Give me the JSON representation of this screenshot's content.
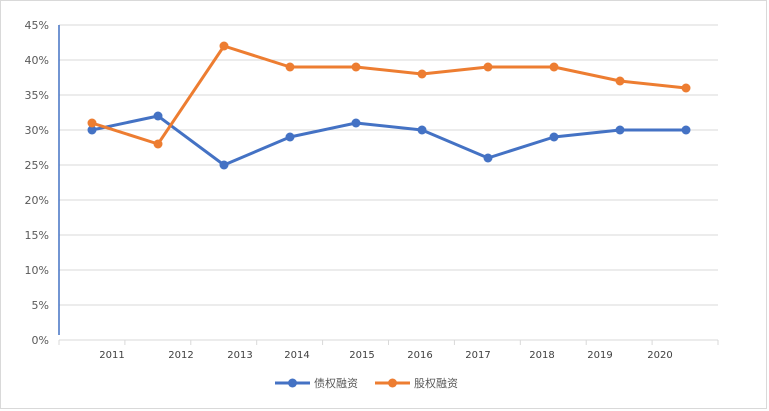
{
  "chart_data": {
    "type": "line",
    "categories": [
      "2011",
      "2012",
      "2013",
      "2014",
      "2015",
      "2016",
      "2017",
      "2018",
      "2019",
      "2020"
    ],
    "y_ticks": [
      "0%",
      "5%",
      "10%",
      "15%",
      "20%",
      "25%",
      "30%",
      "35%",
      "40%",
      "45%"
    ],
    "ylim": [
      0,
      45
    ],
    "grid": true,
    "legend_position": "bottom",
    "series": [
      {
        "name": "债权融资",
        "color": "#4472c4",
        "values": [
          30,
          32,
          25,
          29,
          31,
          30,
          26,
          29,
          30,
          30
        ]
      },
      {
        "name": "股权融资",
        "color": "#ed7d31",
        "values": [
          31,
          28,
          42,
          39,
          39,
          38,
          39,
          39,
          37,
          36
        ]
      }
    ]
  }
}
